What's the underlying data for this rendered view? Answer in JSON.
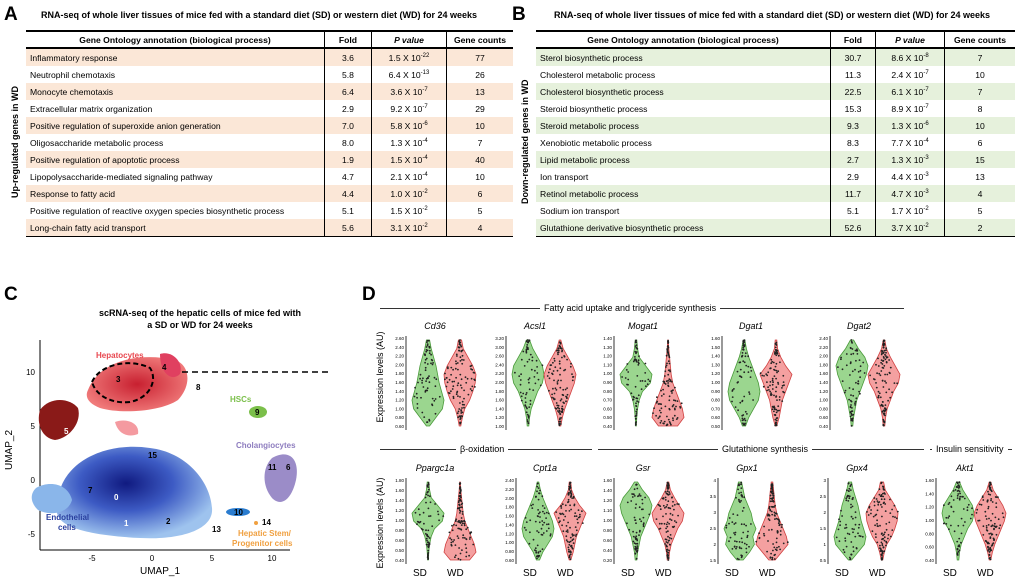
{
  "panelA": {
    "letter": "A",
    "title": "RNA-seq of whole liver tissues of mice fed with a standard diet (SD) or western diet (WD) for 24 weeks",
    "side_label": "Up-regulated genes in WD",
    "headers": {
      "term": "Gene Ontology annotation (biological process)",
      "fold": "Fold",
      "p": "P value",
      "counts": "Gene counts"
    },
    "rows": [
      {
        "term": "Inflammatory response",
        "fold": "3.6",
        "p": "1.5 X 10",
        "exp": "-22",
        "counts": "77"
      },
      {
        "term": "Neutrophil chemotaxis",
        "fold": "5.8",
        "p": "6.4 X 10",
        "exp": "-13",
        "counts": "26"
      },
      {
        "term": "Monocyte chemotaxis",
        "fold": "6.4",
        "p": "3.6 X 10",
        "exp": "-7",
        "counts": "13"
      },
      {
        "term": "Extracellular matrix organization",
        "fold": "2.9",
        "p": "9.2 X 10",
        "exp": "-7",
        "counts": "29"
      },
      {
        "term": "Positive regulation of superoxide anion generation",
        "fold": "7.0",
        "p": "5.8 X 10",
        "exp": "-6",
        "counts": "10"
      },
      {
        "term": "Oligosaccharide metabolic process",
        "fold": "8.0",
        "p": "1.3 X 10",
        "exp": "-4",
        "counts": "7"
      },
      {
        "term": "Positive regulation of apoptotic process",
        "fold": "1.9",
        "p": "1.5 X 10",
        "exp": "-4",
        "counts": "40"
      },
      {
        "term": "Lipopolysaccharide-mediated signaling pathway",
        "fold": "4.7",
        "p": "2.1 X 10",
        "exp": "-4",
        "counts": "10"
      },
      {
        "term": "Response to fatty acid",
        "fold": "4.4",
        "p": "1.0 X 10",
        "exp": "-2",
        "counts": "6"
      },
      {
        "term": "Positive regulation of reactive oxygen species biosynthetic process",
        "fold": "5.1",
        "p": "1.5 X 10",
        "exp": "-2",
        "counts": "5"
      },
      {
        "term": "Long-chain fatty acid transport",
        "fold": "5.6",
        "p": "3.1 X 10",
        "exp": "-2",
        "counts": "4"
      }
    ]
  },
  "panelB": {
    "letter": "B",
    "title": "RNA-seq of whole liver tissues of mice fed with a standard diet (SD) or western diet (WD) for 24 weeks",
    "side_label": "Down-regulated genes in WD",
    "headers": {
      "term": "Gene Ontology annotation (biological process)",
      "fold": "Fold",
      "p": "P value",
      "counts": "Gene counts"
    },
    "rows": [
      {
        "term": "Sterol biosynthetic process",
        "fold": "30.7",
        "p": "8.6 X 10",
        "exp": "-8",
        "counts": "7"
      },
      {
        "term": "Cholesterol metabolic process",
        "fold": "11.3",
        "p": "2.4 X 10",
        "exp": "-7",
        "counts": "10"
      },
      {
        "term": "Cholesterol biosynthetic process",
        "fold": "22.5",
        "p": "6.1 X 10",
        "exp": "-7",
        "counts": "7"
      },
      {
        "term": "Steroid biosynthetic process",
        "fold": "15.3",
        "p": "8.9 X 10",
        "exp": "-7",
        "counts": "8"
      },
      {
        "term": "Steroid metabolic process",
        "fold": "9.3",
        "p": "1.3 X 10",
        "exp": "-6",
        "counts": "10"
      },
      {
        "term": "Xenobiotic metabolic process",
        "fold": "8.3",
        "p": "7.7 X 10",
        "exp": "-4",
        "counts": "6"
      },
      {
        "term": "Lipid metabolic process",
        "fold": "2.7",
        "p": "1.3 X 10",
        "exp": "-3",
        "counts": "15"
      },
      {
        "term": "Ion transport",
        "fold": "2.9",
        "p": "4.4 X 10",
        "exp": "-3",
        "counts": "13"
      },
      {
        "term": "Retinol metabolic process",
        "fold": "11.7",
        "p": "4.7 X 10",
        "exp": "-3",
        "counts": "4"
      },
      {
        "term": "Sodium ion transport",
        "fold": "5.1",
        "p": "1.7 X 10",
        "exp": "-2",
        "counts": "5"
      },
      {
        "term": "Glutathione derivative biosynthetic process",
        "fold": "52.6",
        "p": "3.7 X 10",
        "exp": "-2",
        "counts": "2"
      }
    ]
  },
  "panelC": {
    "letter": "C",
    "title_line1": "scRNA-seq of the hepatic cells of mice fed with",
    "title_line2": "a SD or WD for 24 weeks",
    "xlabel": "UMAP_1",
    "ylabel": "UMAP_2",
    "xticks": [
      "-5",
      "0",
      "5",
      "10"
    ],
    "yticks": [
      "10",
      "5",
      "0",
      "-5"
    ],
    "labels": {
      "hepatocytes": "Hepatocytes",
      "hscs": "HSCs",
      "cholangiocytes": "Cholangiocytes",
      "endothelial1": "Endothelial",
      "endothelial2": "cells",
      "hepatic1": "Hepatic Stem/",
      "hepatic2": "Progenitor cells"
    },
    "cluster_numbers": [
      "0",
      "1",
      "2",
      "3",
      "4",
      "5",
      "6",
      "7",
      "8",
      "9",
      "10",
      "11",
      "13",
      "14",
      "15"
    ],
    "colors": {
      "hepatocyte": "#e8474f",
      "endothelial": "#2a3f9e",
      "hsc": "#7bbf4a",
      "cholangio": "#8e7dbf",
      "progenitor": "#f0a040"
    }
  },
  "panelD": {
    "letter": "D",
    "ylabel": "Expression levels (AU)",
    "groups": {
      "fatty": "Fatty acid uptake and triglyceride synthesis",
      "beta": "β-oxidation",
      "glut": "Glutathione synthesis",
      "insulin": "Insulin sensitivity"
    },
    "x_sd": "SD",
    "x_wd": "WD",
    "colors": {
      "sd": "#7ac86a",
      "wd": "#f08080"
    },
    "row1": [
      {
        "gene": "Cd36",
        "ticks": [
          "2.60",
          "2.40",
          "2.20",
          "2.00",
          "1.80",
          "1.60",
          "1.40",
          "1.20",
          "1.00",
          "0.80",
          "0.60"
        ]
      },
      {
        "gene": "Acsl1",
        "ticks": [
          "3.20",
          "3.00",
          "2.60",
          "2.40",
          "2.20",
          "2.00",
          "1.80",
          "1.60",
          "1.40",
          "1.20",
          "1.00"
        ]
      },
      {
        "gene": "Mogat1",
        "ticks": [
          "1.40",
          "1.30",
          "1.20",
          "1.10",
          "1.00",
          "0.90",
          "0.80",
          "0.70",
          "0.60",
          "0.50",
          "0.40"
        ]
      },
      {
        "gene": "Dgat1",
        "ticks": [
          "1.60",
          "1.50",
          "1.40",
          "1.30",
          "1.20",
          "1.00",
          "0.90",
          "0.80",
          "0.70",
          "0.60",
          "0.50"
        ]
      },
      {
        "gene": "Dgat2",
        "ticks": [
          "2.40",
          "2.20",
          "2.00",
          "1.80",
          "1.60",
          "1.40",
          "1.20",
          "1.00",
          "0.80",
          "0.60",
          "0.40"
        ]
      }
    ],
    "row2": [
      {
        "gene": "Ppargc1a",
        "ticks": [
          "1.80",
          "1.60",
          "1.40",
          "1.20",
          "1.00",
          "0.80",
          "0.60",
          "0.50",
          "0.40"
        ]
      },
      {
        "gene": "Cpt1a",
        "ticks": [
          "2.40",
          "2.20",
          "2.00",
          "1.80",
          "1.60",
          "1.40",
          "1.20",
          "1.00",
          "0.80",
          "0.60"
        ]
      },
      {
        "gene": "Gsr",
        "ticks": [
          "1.60",
          "1.40",
          "1.20",
          "1.10",
          "1.00",
          "0.80",
          "0.60",
          "0.40",
          "0.20"
        ]
      },
      {
        "gene": "Gpx1",
        "ticks": [
          "4",
          "3.5",
          "3",
          "2.5",
          "2",
          "1.5"
        ]
      },
      {
        "gene": "Gpx4",
        "ticks": [
          "3",
          "2.5",
          "2",
          "1.5",
          "1",
          "0.5"
        ]
      },
      {
        "gene": "Akt1",
        "ticks": [
          "1.60",
          "1.40",
          "1.20",
          "1.00",
          "0.80",
          "0.60",
          "0.40"
        ]
      }
    ]
  }
}
